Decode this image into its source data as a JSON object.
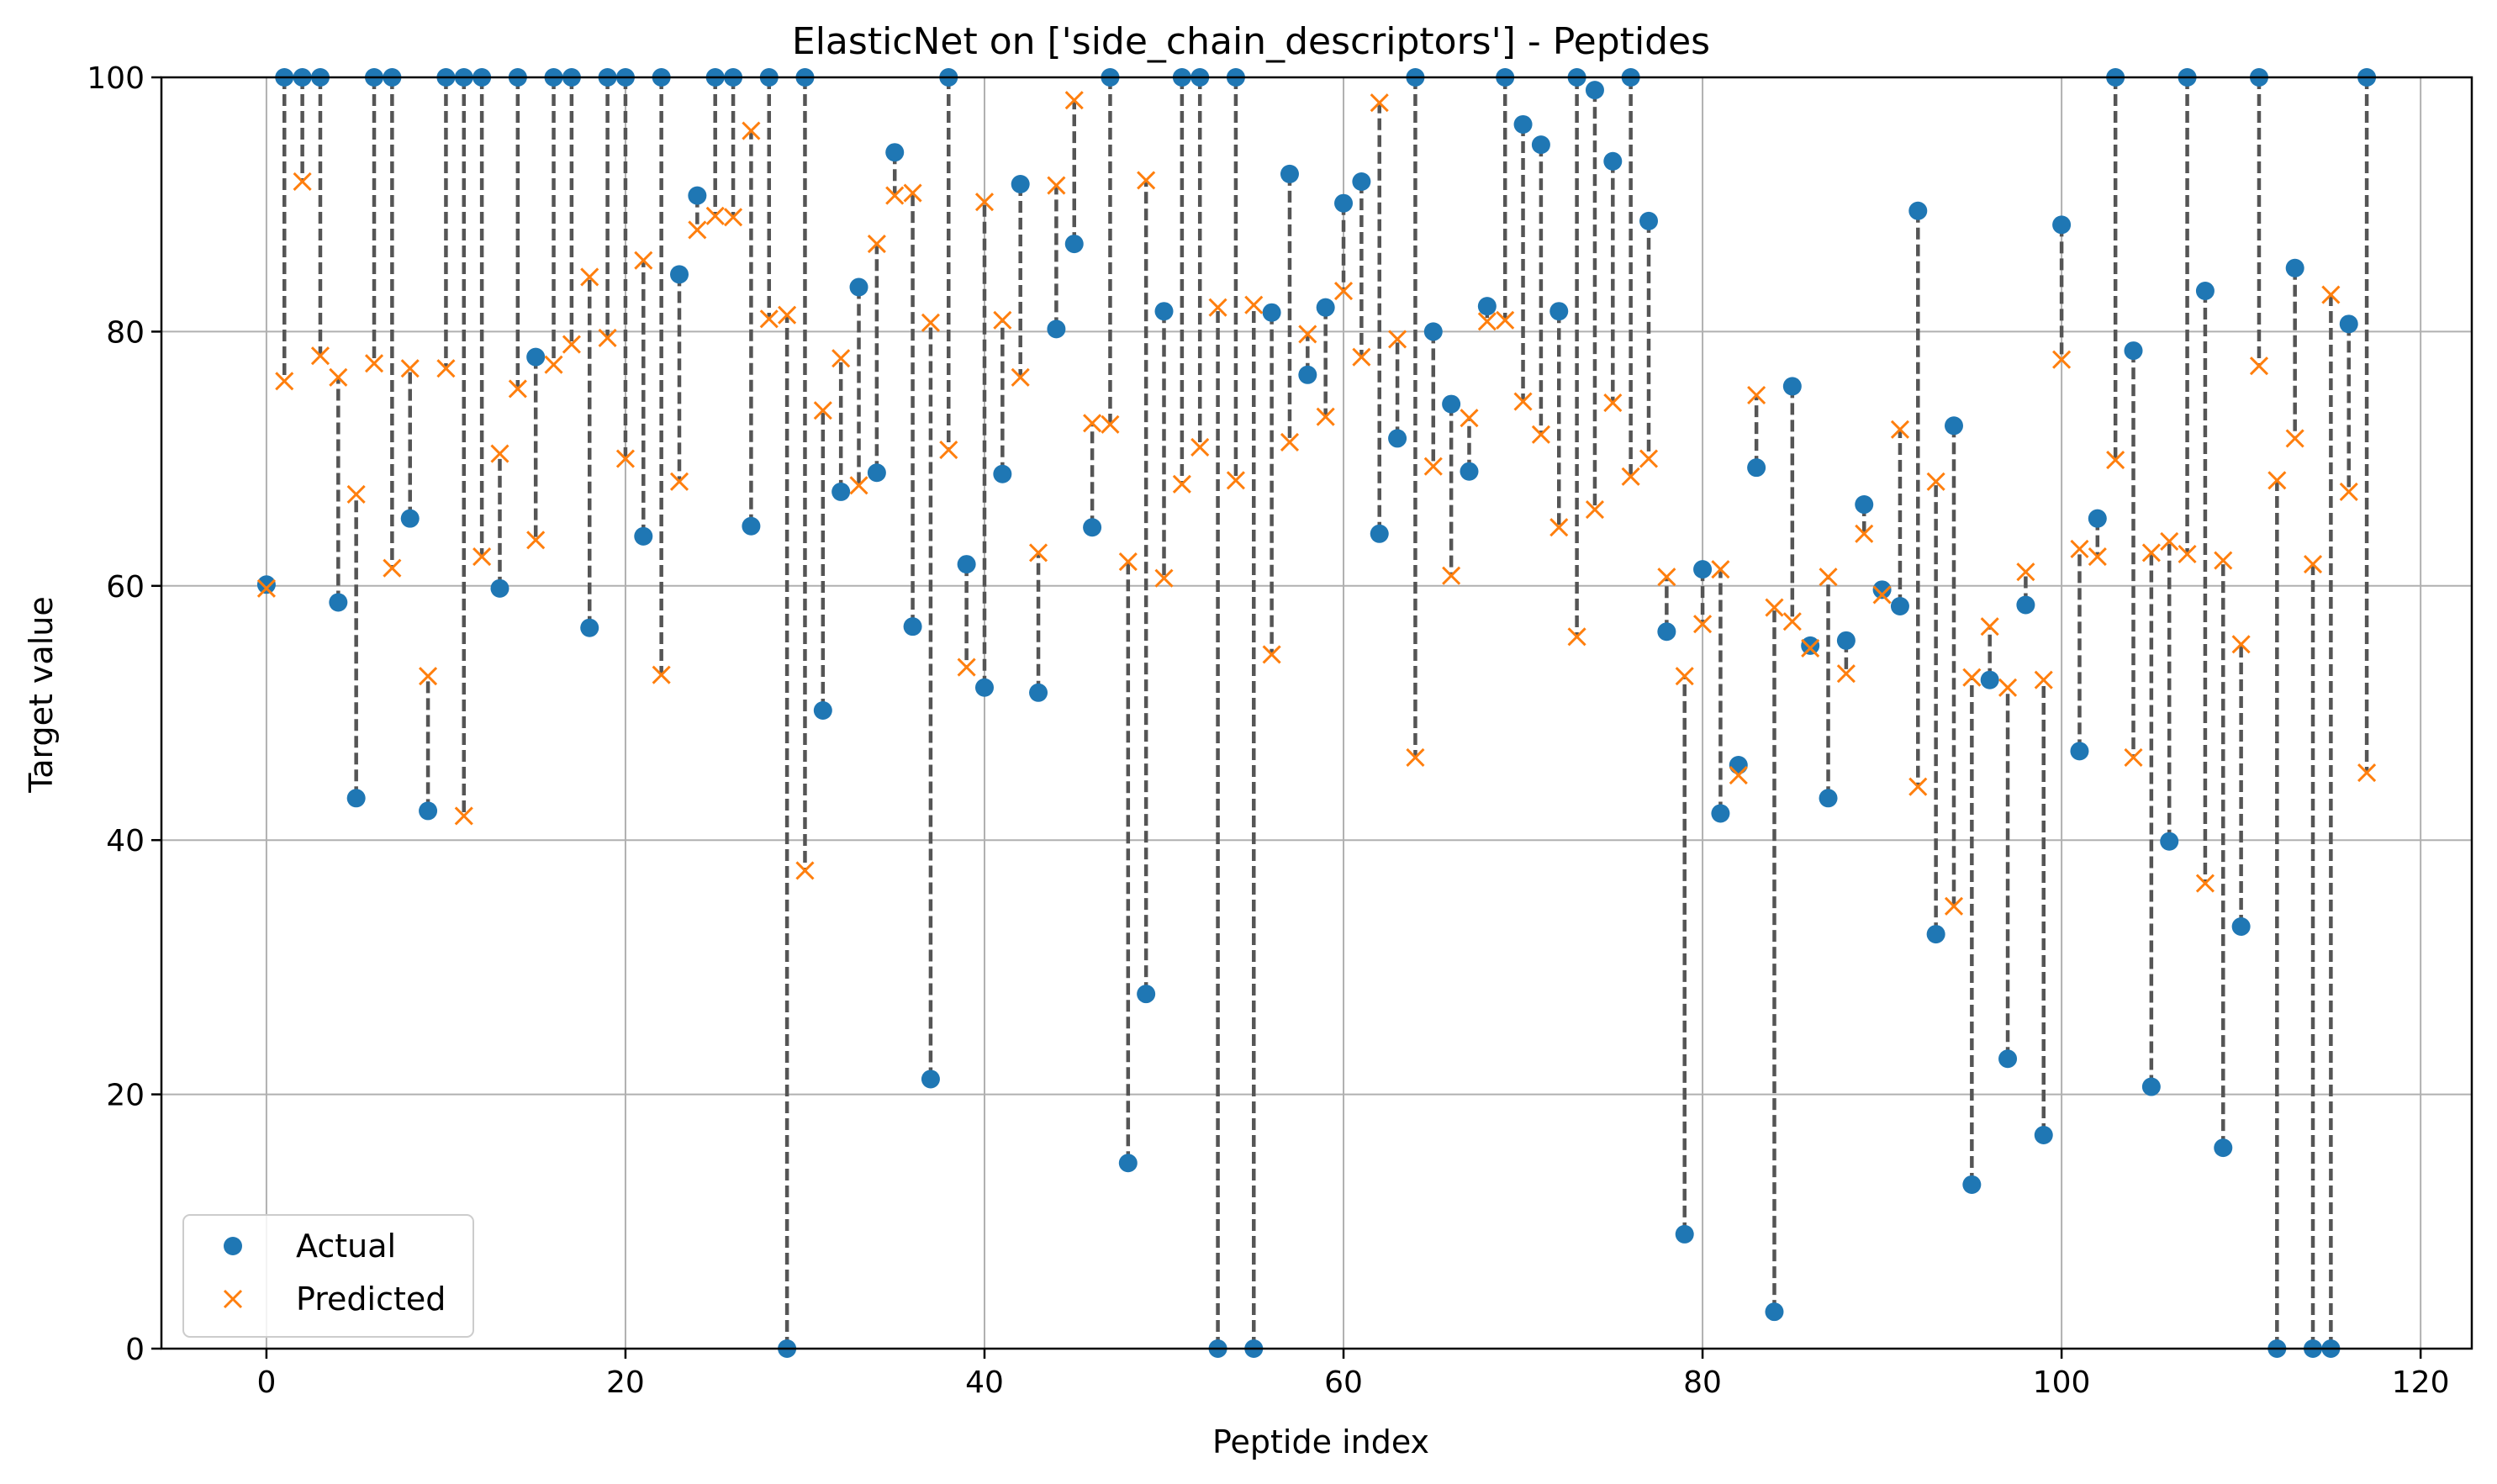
{
  "chart_data": {
    "type": "scatter",
    "title": "ElasticNet on ['side_chain_descriptors'] - Peptides",
    "xlabel": "Peptide index",
    "ylabel": "Target value",
    "xlim": [
      -5.85,
      122.85
    ],
    "ylim": [
      0,
      100
    ],
    "xticks": [
      0,
      20,
      40,
      60,
      80,
      100,
      120
    ],
    "yticks": [
      0,
      20,
      40,
      60,
      80,
      100
    ],
    "grid": true,
    "legend_position": "lower-left",
    "colors": {
      "actual": "#1f77b4",
      "predicted": "#ff7f0e",
      "connector": "#555555"
    },
    "series": [
      {
        "name": "Actual",
        "marker": "circle",
        "values": [
          60.1,
          100,
          100,
          100,
          58.7,
          43.3,
          100,
          100,
          65.3,
          42.3,
          100,
          100,
          100,
          59.8,
          100,
          78.0,
          100,
          100,
          56.7,
          100,
          100,
          63.9,
          100,
          84.5,
          90.7,
          100,
          100,
          64.7,
          100,
          0,
          100,
          50.2,
          67.4,
          83.5,
          68.9,
          94.1,
          56.8,
          21.2,
          100,
          61.7,
          52.0,
          68.8,
          91.6,
          51.6,
          80.2,
          86.9,
          64.6,
          100,
          14.6,
          27.9,
          81.6,
          100,
          100,
          0,
          100,
          0,
          81.5,
          92.4,
          76.6,
          81.9,
          90.1,
          91.8,
          64.1,
          71.6,
          100,
          80.0,
          74.3,
          69.0,
          82.0,
          100,
          96.3,
          94.7,
          81.6,
          100,
          99.0,
          93.4,
          100,
          88.7,
          56.4,
          9.0,
          61.3,
          42.1,
          45.9,
          69.3,
          2.9,
          75.7,
          55.3,
          43.3,
          55.7,
          66.4,
          59.7,
          58.4,
          89.5,
          32.6,
          72.6,
          12.9,
          52.6,
          22.8,
          58.5,
          16.8,
          88.4,
          47.0,
          65.3,
          100,
          78.5,
          20.6,
          39.9,
          100,
          83.2,
          15.8,
          33.2,
          100,
          0,
          85.0,
          0,
          0,
          80.6,
          100
        ]
      },
      {
        "name": "Predicted",
        "marker": "x",
        "values": [
          59.8,
          76.1,
          91.8,
          78.1,
          76.4,
          67.2,
          77.5,
          61.4,
          77.1,
          52.9,
          77.1,
          41.9,
          62.3,
          70.4,
          75.5,
          63.6,
          77.4,
          79.0,
          84.3,
          79.5,
          70.0,
          85.6,
          53.0,
          68.2,
          88.0,
          89.1,
          89.0,
          95.8,
          81.0,
          81.3,
          37.6,
          73.8,
          77.9,
          67.9,
          86.9,
          90.7,
          90.9,
          80.7,
          70.7,
          53.6,
          90.2,
          80.9,
          76.4,
          62.6,
          91.5,
          98.2,
          72.8,
          72.7,
          61.9,
          91.9,
          60.6,
          68.0,
          70.9,
          81.9,
          68.3,
          82.1,
          54.6,
          71.3,
          79.8,
          73.3,
          83.2,
          78.0,
          98.0,
          79.4,
          46.5,
          69.4,
          60.8,
          73.2,
          80.8,
          80.9,
          74.5,
          71.9,
          64.6,
          56.0,
          66.0,
          74.4,
          68.6,
          70.0,
          60.7,
          52.9,
          57.0,
          61.3,
          45.1,
          75.0,
          58.3,
          57.2,
          55.1,
          60.7,
          53.1,
          64.1,
          59.3,
          72.3,
          44.2,
          68.2,
          34.8,
          52.8,
          56.8,
          52.0,
          61.1,
          52.6,
          77.8,
          62.9,
          62.3,
          69.9,
          46.5,
          62.6,
          63.5,
          62.5,
          36.6,
          62.0,
          55.4,
          77.3,
          68.3,
          71.6,
          61.7,
          82.9,
          67.4,
          45.3
        ]
      }
    ]
  }
}
